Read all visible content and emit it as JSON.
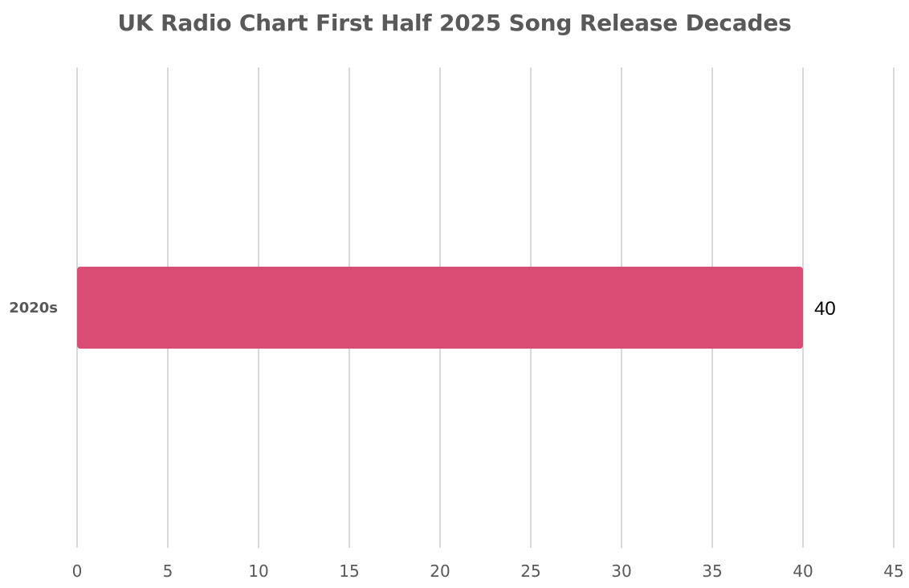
{
  "chart_data": {
    "type": "bar",
    "orientation": "horizontal",
    "title": "UK Radio Chart First Half 2025 Song Release Decades",
    "categories": [
      "2020s"
    ],
    "values": [
      40
    ],
    "data_labels": [
      "40"
    ],
    "xlim": [
      0,
      45
    ],
    "x_ticks": [
      0,
      5,
      10,
      15,
      20,
      25,
      30,
      35,
      40,
      45
    ],
    "x_tick_labels": [
      "0",
      "5",
      "10",
      "15",
      "20",
      "25",
      "30",
      "35",
      "40",
      "45"
    ],
    "grid": "vertical",
    "legend": "none"
  },
  "colors": {
    "bar": "#d94c74",
    "grid": "#d9d9d9",
    "text": "#595959"
  }
}
